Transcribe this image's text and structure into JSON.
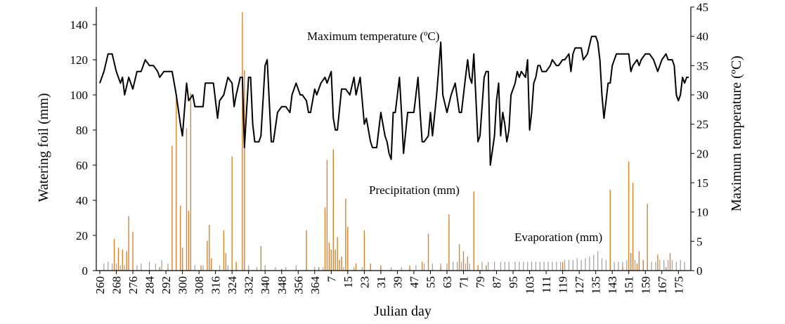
{
  "chart_data": {
    "type": "bar+line",
    "xlabel": "Julian day",
    "ylabel_left": "Watering foil (mm)",
    "ylabel_right": "Maximum temperature (ºC)",
    "ylim_left": [
      0,
      150
    ],
    "ylim_right": [
      0,
      45
    ],
    "yticks_left": [
      0,
      20,
      40,
      60,
      80,
      100,
      120,
      140
    ],
    "yticks_right": [
      0,
      5,
      10,
      15,
      20,
      25,
      30,
      35,
      40,
      45
    ],
    "xtick_labels": [
      "260",
      "268",
      "276",
      "284",
      "292",
      "300",
      "308",
      "316",
      "324",
      "332",
      "340",
      "348",
      "356",
      "364",
      "7",
      "15",
      "23",
      "31",
      "39",
      "47",
      "55",
      "63",
      "71",
      "79",
      "87",
      "95",
      "103",
      "111",
      "119",
      "127",
      "135",
      "143",
      "151",
      "159",
      "167",
      "175"
    ],
    "xtick_step": 8,
    "x_count": 285,
    "annotations": {
      "temperature": "Maximum temperature (ºC)",
      "precipitation": "Precipitation (mm)",
      "evaporation": "Evaporation (mm)"
    },
    "series_styles": {
      "temperature_color": "#000000",
      "precipitation_color": "#D9822B",
      "evaporation_color": "#A6A6A6"
    },
    "temperature_points": [
      [
        0,
        32
      ],
      [
        2,
        34
      ],
      [
        4,
        37
      ],
      [
        6,
        37
      ],
      [
        8,
        34
      ],
      [
        10,
        32
      ],
      [
        11,
        33
      ],
      [
        12,
        30
      ],
      [
        14,
        33
      ],
      [
        16,
        31
      ],
      [
        18,
        34
      ],
      [
        20,
        34
      ],
      [
        22,
        36
      ],
      [
        24,
        35
      ],
      [
        26,
        35
      ],
      [
        28,
        34
      ],
      [
        29,
        33
      ],
      [
        31,
        34
      ],
      [
        33,
        34
      ],
      [
        35,
        34
      ],
      [
        36,
        32
      ],
      [
        37,
        30
      ],
      [
        39,
        25
      ],
      [
        40,
        23
      ],
      [
        42,
        32
      ],
      [
        43,
        29
      ],
      [
        45,
        30
      ],
      [
        46,
        28
      ],
      [
        48,
        28
      ],
      [
        49,
        28
      ],
      [
        50,
        28
      ],
      [
        51,
        32
      ],
      [
        53,
        32
      ],
      [
        55,
        32
      ],
      [
        57,
        26
      ],
      [
        58,
        29
      ],
      [
        60,
        30
      ],
      [
        62,
        33
      ],
      [
        64,
        32
      ],
      [
        65,
        28
      ],
      [
        66,
        30
      ],
      [
        68,
        33
      ],
      [
        69,
        33
      ],
      [
        70,
        21
      ],
      [
        72,
        33
      ],
      [
        73,
        33
      ],
      [
        74,
        25
      ],
      [
        75,
        22
      ],
      [
        77,
        22
      ],
      [
        78,
        23
      ],
      [
        80,
        35
      ],
      [
        81,
        36
      ],
      [
        83,
        22
      ],
      [
        84,
        22
      ],
      [
        86,
        27
      ],
      [
        88,
        28
      ],
      [
        90,
        28
      ],
      [
        92,
        27
      ],
      [
        93,
        30
      ],
      [
        95,
        32
      ],
      [
        97,
        30
      ],
      [
        98,
        30
      ],
      [
        100,
        29
      ],
      [
        101,
        27
      ],
      [
        102,
        27
      ],
      [
        104,
        31
      ],
      [
        105,
        30
      ],
      [
        107,
        32
      ],
      [
        109,
        33
      ],
      [
        110,
        32
      ],
      [
        112,
        34
      ],
      [
        113,
        26
      ],
      [
        114,
        24
      ],
      [
        115,
        24
      ],
      [
        117,
        31
      ],
      [
        119,
        31
      ],
      [
        121,
        30
      ],
      [
        123,
        33
      ],
      [
        124,
        30
      ],
      [
        126,
        33
      ],
      [
        128,
        25
      ],
      [
        129,
        26
      ],
      [
        131,
        22
      ],
      [
        132,
        21
      ],
      [
        134,
        21
      ],
      [
        136,
        27
      ],
      [
        138,
        23
      ],
      [
        139,
        22
      ],
      [
        140,
        20
      ],
      [
        141,
        19
      ],
      [
        142,
        27
      ],
      [
        143,
        27
      ],
      [
        145,
        33
      ],
      [
        146,
        27
      ],
      [
        147,
        20
      ],
      [
        149,
        27
      ],
      [
        150,
        27
      ],
      [
        152,
        27
      ],
      [
        154,
        33
      ],
      [
        155,
        27
      ],
      [
        156,
        22
      ],
      [
        157,
        22
      ],
      [
        159,
        23
      ],
      [
        160,
        27
      ],
      [
        161,
        23
      ],
      [
        163,
        30
      ],
      [
        165,
        39
      ],
      [
        166,
        30
      ],
      [
        168,
        27
      ],
      [
        170,
        30
      ],
      [
        172,
        32
      ],
      [
        174,
        27
      ],
      [
        175,
        27
      ],
      [
        177,
        33
      ],
      [
        178,
        36
      ],
      [
        179,
        33
      ],
      [
        180,
        32
      ],
      [
        181,
        37
      ],
      [
        183,
        22
      ],
      [
        184,
        23
      ],
      [
        186,
        33
      ],
      [
        187,
        34
      ],
      [
        188,
        34
      ],
      [
        189,
        18
      ],
      [
        191,
        23
      ],
      [
        192,
        29
      ],
      [
        193,
        32
      ],
      [
        194,
        23
      ],
      [
        195,
        27
      ],
      [
        196,
        25
      ],
      [
        197,
        22
      ],
      [
        198,
        24
      ],
      [
        199,
        30
      ],
      [
        201,
        32
      ],
      [
        202,
        34
      ],
      [
        203,
        33
      ],
      [
        204,
        34
      ],
      [
        206,
        33
      ],
      [
        207,
        36
      ],
      [
        208,
        24
      ],
      [
        209,
        27
      ],
      [
        210,
        32
      ],
      [
        211,
        33
      ],
      [
        212,
        35
      ],
      [
        213,
        35
      ],
      [
        214,
        34
      ],
      [
        216,
        34
      ],
      [
        218,
        35
      ],
      [
        219,
        36
      ],
      [
        221,
        35
      ],
      [
        222,
        35
      ],
      [
        224,
        36
      ],
      [
        225,
        36
      ],
      [
        227,
        37
      ],
      [
        228,
        34
      ],
      [
        229,
        37
      ],
      [
        230,
        38
      ],
      [
        231,
        38
      ],
      [
        233,
        38
      ],
      [
        234,
        36
      ],
      [
        236,
        37
      ],
      [
        238,
        40
      ],
      [
        240,
        40
      ],
      [
        241,
        39
      ],
      [
        242,
        36
      ],
      [
        243,
        30
      ],
      [
        244,
        26
      ],
      [
        245,
        29
      ],
      [
        246,
        32
      ],
      [
        247,
        32
      ],
      [
        248,
        35
      ],
      [
        250,
        37
      ],
      [
        252,
        37
      ],
      [
        254,
        37
      ],
      [
        256,
        37
      ],
      [
        257,
        34
      ],
      [
        258,
        35
      ],
      [
        260,
        36
      ],
      [
        261,
        35
      ],
      [
        262,
        36
      ],
      [
        264,
        37
      ],
      [
        266,
        37
      ],
      [
        268,
        36
      ],
      [
        270,
        34
      ],
      [
        272,
        36
      ],
      [
        274,
        37
      ],
      [
        275,
        36
      ],
      [
        276,
        36
      ],
      [
        277,
        36
      ],
      [
        278,
        35
      ],
      [
        279,
        30
      ],
      [
        280,
        29
      ],
      [
        281,
        30
      ],
      [
        282,
        33
      ],
      [
        283,
        32
      ],
      [
        284,
        33
      ],
      [
        285,
        33
      ]
    ],
    "precipitation_bars": [
      [
        7,
        18
      ],
      [
        9,
        13
      ],
      [
        11,
        12
      ],
      [
        13,
        11
      ],
      [
        14,
        31
      ],
      [
        16,
        22
      ],
      [
        29,
        2
      ],
      [
        33,
        1
      ],
      [
        35,
        71
      ],
      [
        37,
        98
      ],
      [
        39,
        37
      ],
      [
        40,
        13
      ],
      [
        42,
        81
      ],
      [
        43,
        34
      ],
      [
        44,
        101
      ],
      [
        49,
        3
      ],
      [
        52,
        17
      ],
      [
        53,
        26
      ],
      [
        54,
        7
      ],
      [
        60,
        23
      ],
      [
        61,
        10
      ],
      [
        64,
        65
      ],
      [
        66,
        5
      ],
      [
        69,
        147
      ],
      [
        70,
        114
      ],
      [
        78,
        14
      ],
      [
        88,
        1
      ],
      [
        100,
        23
      ],
      [
        106,
        2
      ],
      [
        109,
        36
      ],
      [
        110,
        63
      ],
      [
        111,
        16
      ],
      [
        112,
        12
      ],
      [
        113,
        69
      ],
      [
        114,
        12
      ],
      [
        115,
        19
      ],
      [
        116,
        6
      ],
      [
        117,
        8
      ],
      [
        119,
        41
      ],
      [
        120,
        25
      ],
      [
        124,
        4
      ],
      [
        128,
        23
      ],
      [
        131,
        4
      ],
      [
        136,
        3
      ],
      [
        150,
        2
      ],
      [
        156,
        5
      ],
      [
        159,
        21
      ],
      [
        165,
        2
      ],
      [
        169,
        32
      ],
      [
        174,
        15
      ],
      [
        176,
        11
      ],
      [
        178,
        8
      ],
      [
        181,
        45
      ],
      [
        183,
        3
      ],
      [
        187,
        3
      ],
      [
        224,
        5
      ],
      [
        247,
        46
      ],
      [
        253,
        2
      ],
      [
        256,
        62
      ],
      [
        257,
        10
      ],
      [
        258,
        50
      ],
      [
        260,
        4
      ],
      [
        261,
        11
      ],
      [
        263,
        6
      ],
      [
        265,
        38
      ],
      [
        270,
        9
      ],
      [
        274,
        2
      ],
      [
        276,
        10
      ]
    ],
    "evaporation_bars": [
      [
        2,
        4
      ],
      [
        4,
        5
      ],
      [
        6,
        4
      ],
      [
        8,
        4
      ],
      [
        10,
        3
      ],
      [
        12,
        3
      ],
      [
        14,
        3
      ],
      [
        18,
        3
      ],
      [
        20,
        4
      ],
      [
        24,
        5
      ],
      [
        27,
        4
      ],
      [
        30,
        6
      ],
      [
        33,
        4
      ],
      [
        40,
        4
      ],
      [
        46,
        3
      ],
      [
        50,
        3
      ],
      [
        54,
        3
      ],
      [
        58,
        3
      ],
      [
        62,
        3
      ],
      [
        66,
        3
      ],
      [
        72,
        3
      ],
      [
        76,
        2
      ],
      [
        80,
        3
      ],
      [
        85,
        2
      ],
      [
        90,
        2
      ],
      [
        95,
        3
      ],
      [
        100,
        2
      ],
      [
        104,
        2
      ],
      [
        108,
        2
      ],
      [
        112,
        2
      ],
      [
        118,
        2
      ],
      [
        123,
        2
      ],
      [
        127,
        2
      ],
      [
        131,
        2
      ],
      [
        136,
        2
      ],
      [
        141,
        2
      ],
      [
        146,
        2
      ],
      [
        150,
        3
      ],
      [
        153,
        3
      ],
      [
        157,
        4
      ],
      [
        161,
        4
      ],
      [
        165,
        4
      ],
      [
        168,
        4
      ],
      [
        171,
        5
      ],
      [
        173,
        5
      ],
      [
        175,
        5
      ],
      [
        177,
        4
      ],
      [
        179,
        4
      ],
      [
        185,
        5
      ],
      [
        188,
        5
      ],
      [
        191,
        5
      ],
      [
        194,
        5
      ],
      [
        196,
        5
      ],
      [
        198,
        5
      ],
      [
        201,
        5
      ],
      [
        203,
        5
      ],
      [
        205,
        5
      ],
      [
        207,
        5
      ],
      [
        209,
        5
      ],
      [
        211,
        5
      ],
      [
        213,
        5
      ],
      [
        215,
        5
      ],
      [
        217,
        5
      ],
      [
        219,
        5
      ],
      [
        221,
        5
      ],
      [
        223,
        5
      ],
      [
        225,
        6
      ],
      [
        227,
        6
      ],
      [
        229,
        6
      ],
      [
        231,
        7
      ],
      [
        233,
        6
      ],
      [
        235,
        7
      ],
      [
        237,
        8
      ],
      [
        239,
        9
      ],
      [
        241,
        11
      ],
      [
        243,
        7
      ],
      [
        245,
        6
      ],
      [
        247,
        6
      ],
      [
        249,
        5
      ],
      [
        251,
        5
      ],
      [
        253,
        5
      ],
      [
        255,
        6
      ],
      [
        257,
        6
      ],
      [
        259,
        6
      ],
      [
        261,
        6
      ],
      [
        263,
        5
      ],
      [
        265,
        6
      ],
      [
        267,
        5
      ],
      [
        269,
        5
      ],
      [
        271,
        6
      ],
      [
        273,
        6
      ],
      [
        275,
        6
      ],
      [
        277,
        6
      ],
      [
        279,
        5
      ],
      [
        281,
        6
      ],
      [
        283,
        5
      ]
    ]
  }
}
